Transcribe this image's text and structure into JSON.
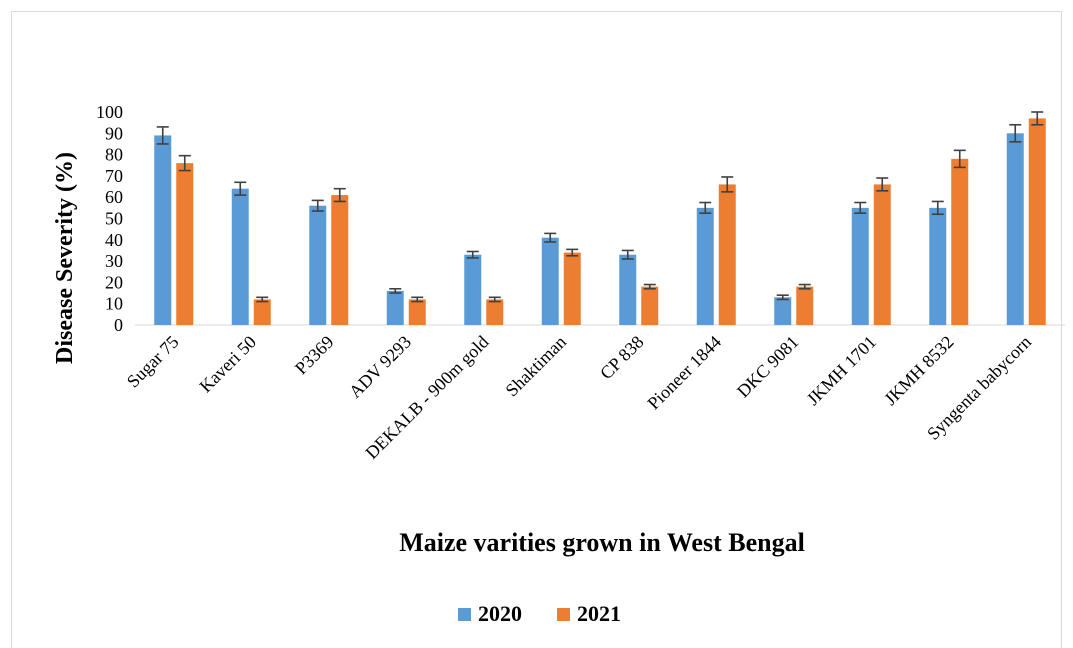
{
  "chart_data": {
    "type": "bar",
    "title": "",
    "xlabel": "Maize varities grown in West Bengal",
    "ylabel": "Disease Severity   (%)",
    "ylim": [
      0,
      100
    ],
    "yticks": [
      0,
      10,
      20,
      30,
      40,
      50,
      60,
      70,
      80,
      90,
      100
    ],
    "categories": [
      "Sugar 75",
      "Kaveri 50",
      "P3369",
      "ADV 9293",
      "DEKALB - 900m gold",
      "Shaktiman",
      "CP 838",
      "Pioneer 1844",
      "DKC 9081",
      "JKMH 1701",
      "JKMH 8532",
      "Syngenta babycorn"
    ],
    "series": [
      {
        "name": "2020",
        "color": "#5b9bd5",
        "values": [
          89,
          64,
          56,
          16,
          33,
          41,
          33,
          55,
          13,
          55,
          55,
          90
        ],
        "errors": [
          4,
          3,
          2.5,
          1,
          1.5,
          2,
          2,
          2.5,
          1,
          2.5,
          3,
          4
        ]
      },
      {
        "name": "2021",
        "color": "#ed7d31",
        "values": [
          76,
          12,
          61,
          12,
          12,
          34,
          18,
          66,
          18,
          66,
          78,
          97
        ],
        "errors": [
          3.5,
          1,
          3,
          1,
          1,
          1.5,
          1,
          3.5,
          1,
          3,
          4,
          3
        ]
      }
    ],
    "legend": {
      "position": "bottom",
      "labels": [
        "2020",
        "2021"
      ]
    },
    "grid": false,
    "error_bars": true
  }
}
